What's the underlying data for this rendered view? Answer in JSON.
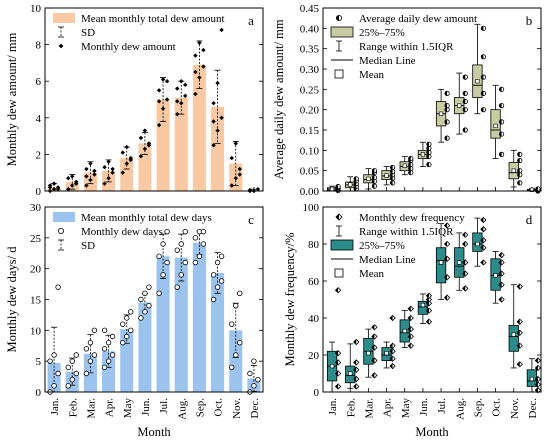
{
  "months": [
    "Jan.",
    "Feb.",
    "Mar.",
    "Apr.",
    "May",
    "Jun.",
    "Jul.",
    "Aug.",
    "Sep.",
    "Oct.",
    "Nov.",
    "Dec."
  ],
  "xlabel": "Month",
  "chart_data": [
    {
      "panel_letter": "a",
      "type": "bar",
      "ylabel": "Monthly dew amount/ mm",
      "ylim": [
        0,
        10
      ],
      "yticks": [
        0,
        2,
        4,
        6,
        8,
        10
      ],
      "bar_color": "#f8c9a2",
      "legend": [
        "Mean monthly total dew amount",
        "SD",
        "Monthly dew amount"
      ],
      "values": [
        0.2,
        0.5,
        1.0,
        1.1,
        1.8,
        2.6,
        5.0,
        5.1,
        6.9,
        4.6,
        1.5,
        0.05
      ],
      "sd": [
        0.2,
        0.4,
        0.6,
        0.6,
        0.6,
        0.6,
        1.2,
        0.9,
        1.3,
        2.0,
        1.2,
        0.05
      ],
      "points": [
        [
          0.0,
          0.1,
          0.2,
          0.3,
          0.4,
          0.1,
          0.2
        ],
        [
          0.1,
          0.3,
          0.5,
          0.7,
          0.8,
          0.4
        ],
        [
          0.3,
          0.6,
          0.9,
          1.2,
          1.5,
          1.1,
          0.8
        ],
        [
          0.4,
          0.7,
          1.0,
          1.3,
          1.6,
          1.2
        ],
        [
          1.0,
          1.5,
          1.8,
          2.1,
          2.4,
          1.7
        ],
        [
          1.9,
          2.3,
          2.6,
          2.9,
          3.3,
          2.5
        ],
        [
          3.6,
          4.5,
          5.0,
          5.5,
          6.1,
          6.0,
          4.9
        ],
        [
          4.2,
          4.8,
          5.2,
          5.6,
          6.0,
          5.8,
          4.9
        ],
        [
          5.3,
          6.2,
          6.8,
          7.4,
          8.1,
          7.7,
          6.5
        ],
        [
          2.5,
          3.3,
          4.0,
          4.8,
          5.9,
          8.8,
          3.8
        ],
        [
          0.3,
          0.7,
          1.2,
          1.8,
          2.6,
          0.9
        ],
        [
          0.0,
          0.0,
          0.1,
          0.05
        ]
      ]
    },
    {
      "panel_letter": "b",
      "type": "box",
      "ylabel": "Average daily dew amount/ mm",
      "ylim": [
        0,
        0.45
      ],
      "yticks": [
        0.0,
        0.05,
        0.1,
        0.15,
        0.2,
        0.25,
        0.3,
        0.35,
        0.4,
        0.45
      ],
      "box_color": "#c9cba3",
      "legend": [
        "Average daily dew amount",
        "25%–75%",
        "Range within 1.5IQR",
        "Median Line",
        "Mean"
      ],
      "boxes": [
        {
          "min": 0.0,
          "q1": 0.002,
          "median": 0.005,
          "q3": 0.008,
          "max": 0.012,
          "mean": 0.005,
          "points": [
            0.001,
            0.004,
            0.006,
            0.009,
            0.011
          ]
        },
        {
          "min": 0.0,
          "q1": 0.008,
          "median": 0.015,
          "q3": 0.022,
          "max": 0.035,
          "mean": 0.016,
          "points": [
            0.005,
            0.012,
            0.018,
            0.025,
            0.03
          ]
        },
        {
          "min": 0.005,
          "q1": 0.02,
          "median": 0.028,
          "q3": 0.04,
          "max": 0.055,
          "mean": 0.03,
          "points": [
            0.012,
            0.024,
            0.033,
            0.045,
            0.05
          ]
        },
        {
          "min": 0.015,
          "q1": 0.028,
          "median": 0.037,
          "q3": 0.05,
          "max": 0.06,
          "mean": 0.038,
          "points": [
            0.02,
            0.032,
            0.04,
            0.048,
            0.058
          ]
        },
        {
          "min": 0.04,
          "q1": 0.05,
          "median": 0.06,
          "q3": 0.072,
          "max": 0.085,
          "mean": 0.062,
          "points": [
            0.045,
            0.055,
            0.065,
            0.075,
            0.08
          ]
        },
        {
          "min": 0.06,
          "q1": 0.08,
          "median": 0.09,
          "q3": 0.1,
          "max": 0.12,
          "mean": 0.09,
          "points": [
            0.065,
            0.085,
            0.095,
            0.105,
            0.115
          ]
        },
        {
          "min": 0.12,
          "q1": 0.16,
          "median": 0.19,
          "q3": 0.22,
          "max": 0.25,
          "mean": 0.19,
          "points": [
            0.13,
            0.17,
            0.2,
            0.21,
            0.24
          ]
        },
        {
          "min": 0.14,
          "q1": 0.19,
          "median": 0.21,
          "q3": 0.23,
          "max": 0.29,
          "mean": 0.21,
          "points": [
            0.15,
            0.2,
            0.22,
            0.24,
            0.28
          ]
        },
        {
          "min": 0.19,
          "q1": 0.23,
          "median": 0.26,
          "q3": 0.31,
          "max": 0.41,
          "mean": 0.27,
          "points": [
            0.2,
            0.24,
            0.28,
            0.33,
            0.4
          ]
        },
        {
          "min": 0.08,
          "q1": 0.13,
          "median": 0.15,
          "q3": 0.2,
          "max": 0.26,
          "mean": 0.16,
          "points": [
            0.09,
            0.14,
            0.17,
            0.21,
            0.25
          ]
        },
        {
          "min": 0.01,
          "q1": 0.03,
          "median": 0.045,
          "q3": 0.07,
          "max": 0.1,
          "mean": 0.05,
          "points": [
            0.02,
            0.04,
            0.05,
            0.075,
            0.09
          ]
        },
        {
          "min": 0.0,
          "q1": 0.001,
          "median": 0.002,
          "q3": 0.004,
          "max": 0.006,
          "mean": 0.003,
          "points": [
            0.0,
            0.002,
            0.003,
            0.005
          ]
        }
      ]
    },
    {
      "panel_letter": "c",
      "type": "bar",
      "ylabel": "Monthly dew days/ d",
      "ylim": [
        0,
        30
      ],
      "yticks": [
        0,
        5,
        10,
        15,
        20,
        25,
        30
      ],
      "bar_color": "#9cc3ee",
      "legend": [
        "Mean monthly total dew days",
        "Monthly dew days",
        "SD"
      ],
      "values": [
        4.7,
        3.3,
        6.2,
        6.6,
        10.2,
        14.5,
        22.0,
        21.8,
        24.2,
        19.3,
        10.0,
        2.2
      ],
      "sd": [
        5.8,
        2.2,
        3.1,
        2.6,
        2.3,
        1.5,
        3.6,
        3.8,
        1.9,
        3.3,
        4.4,
        2.1
      ],
      "points": [
        [
          0,
          1,
          3,
          5,
          6,
          17
        ],
        [
          1,
          2,
          3,
          4,
          5,
          6
        ],
        [
          3,
          5,
          6,
          7,
          8,
          10
        ],
        [
          4,
          5,
          6,
          7,
          8,
          9,
          10
        ],
        [
          8,
          9,
          10,
          11,
          12,
          13
        ],
        [
          12,
          13,
          14,
          15,
          16,
          17
        ],
        [
          16,
          19,
          21,
          22,
          24,
          26
        ],
        [
          17,
          19,
          21,
          23,
          24,
          26
        ],
        [
          21,
          22,
          24,
          25,
          26,
          26
        ],
        [
          15,
          17,
          18,
          19,
          21,
          22
        ],
        [
          4,
          6,
          8,
          11,
          14,
          16
        ],
        [
          0,
          1,
          2,
          3,
          5
        ]
      ]
    },
    {
      "panel_letter": "d",
      "type": "box",
      "ylabel": "Monthly dew frequency/%",
      "ylim": [
        0,
        100
      ],
      "yticks": [
        0,
        20,
        40,
        60,
        80,
        100
      ],
      "box_color": "#2c8c8c",
      "legend": [
        "Monthly dew frequency",
        "Range within 1.5IQR",
        "25%–75%",
        "Median Line",
        "Mean"
      ],
      "boxes": [
        {
          "min": 0,
          "q1": 6,
          "median": 14,
          "q3": 22,
          "max": 27,
          "mean": 14,
          "points": [
            55,
            3,
            10,
            16,
            21
          ]
        },
        {
          "min": 2,
          "q1": 5,
          "median": 9,
          "q3": 14,
          "max": 26,
          "mean": 10,
          "points": [
            3,
            7,
            12,
            16,
            27
          ]
        },
        {
          "min": 8,
          "q1": 15,
          "median": 22,
          "q3": 29,
          "max": 34,
          "mean": 21,
          "points": [
            9,
            17,
            24,
            30,
            35
          ]
        },
        {
          "min": 13,
          "q1": 17,
          "median": 20,
          "q3": 24,
          "max": 27,
          "mean": 21,
          "points": [
            14,
            18,
            22,
            25,
            40
          ]
        },
        {
          "min": 24,
          "q1": 27,
          "median": 32,
          "q3": 39,
          "max": 44,
          "mean": 33,
          "points": [
            25,
            30,
            34,
            40,
            45
          ]
        },
        {
          "min": 37,
          "q1": 42,
          "median": 46,
          "q3": 49,
          "max": 53,
          "mean": 47,
          "points": [
            38,
            44,
            48,
            50,
            52
          ]
        },
        {
          "min": 50,
          "q1": 59,
          "median": 71,
          "q3": 78,
          "max": 91,
          "mean": 70,
          "points": [
            51,
            62,
            72,
            80,
            90
          ]
        },
        {
          "min": 55,
          "q1": 62,
          "median": 68,
          "q3": 78,
          "max": 86,
          "mean": 70,
          "points": [
            56,
            64,
            70,
            80,
            85
          ]
        },
        {
          "min": 68,
          "q1": 76,
          "median": 80,
          "q3": 86,
          "max": 94,
          "mean": 80,
          "points": [
            70,
            78,
            82,
            88,
            93
          ]
        },
        {
          "min": 48,
          "q1": 55,
          "median": 63,
          "q3": 72,
          "max": 76,
          "mean": 63,
          "points": [
            50,
            58,
            64,
            70,
            74
          ]
        },
        {
          "min": 13,
          "q1": 22,
          "median": 30,
          "q3": 36,
          "max": 58,
          "mean": 31,
          "points": [
            15,
            25,
            32,
            38,
            57
          ]
        },
        {
          "min": 0,
          "q1": 3,
          "median": 6,
          "q3": 12,
          "max": 18,
          "mean": 7,
          "points": [
            1,
            4,
            7,
            13,
            17
          ]
        }
      ]
    }
  ]
}
